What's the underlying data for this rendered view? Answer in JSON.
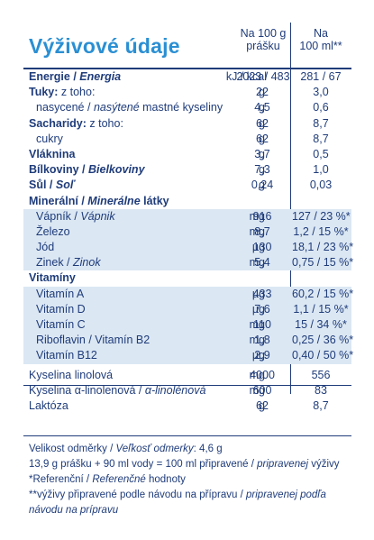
{
  "title": "Výživové údaje",
  "header": {
    "col1_line1": "Na 100 g",
    "col1_line2": "prášku",
    "col2_line1": "Na",
    "col2_line2": "100 ml**"
  },
  "rows": [
    {
      "label": "Energie",
      "label_sep": " / ",
      "label_alt": "Energia",
      "unit": "kJ / kcal",
      "v1": "2023 / 483",
      "v2": "281 / 67"
    },
    {
      "label": "Tuky:",
      "label_rest": " z toho:",
      "unit": "g",
      "v1": "22",
      "v2": "3,0"
    },
    {
      "label": "nasycené / ",
      "label_alt": "nasýtené",
      "label_rest": " mastné kyseliny",
      "unit": "g",
      "v1": "4,5",
      "v2": "0,6"
    },
    {
      "label": "Sacharidy:",
      "label_rest": " z toho:",
      "unit": "g",
      "v1": "62",
      "v2": "8,7"
    },
    {
      "label": "cukry",
      "unit": "g",
      "v1": "62",
      "v2": "8,7"
    },
    {
      "label": "Vláknina",
      "unit": "g",
      "v1": "3,7",
      "v2": "0,5"
    },
    {
      "label": "Bílkoviny",
      "label_sep": " / ",
      "label_alt": "Bielkoviny",
      "unit": "g",
      "v1": "7,3",
      "v2": "1,0"
    },
    {
      "label": "Sůl",
      "label_sep": " / ",
      "label_alt": "Soľ",
      "unit": "g",
      "v1": "0,24",
      "v2": "0,03"
    },
    {
      "label": "Minerální",
      "label_sep": " / ",
      "label_alt": "Minerálne",
      "label_rest": " látky"
    },
    {
      "label": "Vápník / ",
      "label_alt": "Vápnik",
      "unit": "mg",
      "v1": "916",
      "v2": "127 / 23 %*"
    },
    {
      "label": "Železo",
      "unit": "mg",
      "v1": "8,7",
      "v2": "1,2 / 15 %*"
    },
    {
      "label": "Jód",
      "unit": "µg",
      "v1": "130",
      "v2": "18,1 / 23 %*"
    },
    {
      "label": "Zinek / ",
      "label_alt": "Zinok",
      "unit": "mg",
      "v1": "5,4",
      "v2": "0,75 / 15 %*"
    },
    {
      "label": "Vitamíny"
    },
    {
      "label": "Vitamín A",
      "unit": "µg",
      "v1": "433",
      "v2": "60,2 / 15 %*"
    },
    {
      "label": "Vitamín D",
      "unit": "µg",
      "v1": "7,6",
      "v2": "1,1 / 15 %*"
    },
    {
      "label": "Vitamín C",
      "unit": "mg",
      "v1": "110",
      "v2": "15 / 34 %*"
    },
    {
      "label": "Riboflavin / Vitamín B2",
      "unit": "mg",
      "v1": "1,8",
      "v2": "0,25 / 36 %*"
    },
    {
      "label": "Vitamín B12",
      "unit": "µg",
      "v1": "2,9",
      "v2": "0,40 / 50 %*"
    },
    {
      "label": "Kyselina linolová",
      "unit": "mg",
      "v1": "4000",
      "v2": "556"
    },
    {
      "label": "Kyselina α-linolenová / ",
      "label_alt": "α-linolénová",
      "unit": "mg",
      "v1": "600",
      "v2": "83"
    },
    {
      "label": "Laktóza",
      "unit": "g",
      "v1": "62",
      "v2": "8,7"
    }
  ],
  "footer": {
    "serving_label": "Velikost odměrky / ",
    "serving_alt": "Veľkosť odmerky",
    "serving_value": ": 4,6 g",
    "prep_main": "13,9 g prášku + 90 ml vody = 100 ml připravené / ",
    "prep_alt": "pripravenej",
    "prep_end": " výživy",
    "ref_main": "*Referenční / ",
    "ref_alt": "Referenčné",
    "ref_end": " hodnoty",
    "note_main": "**výživy připravené podle návodu na přípravu / ",
    "note_alt": "pripravenej podľa",
    "note_alt2": "návodu na prípravu"
  }
}
